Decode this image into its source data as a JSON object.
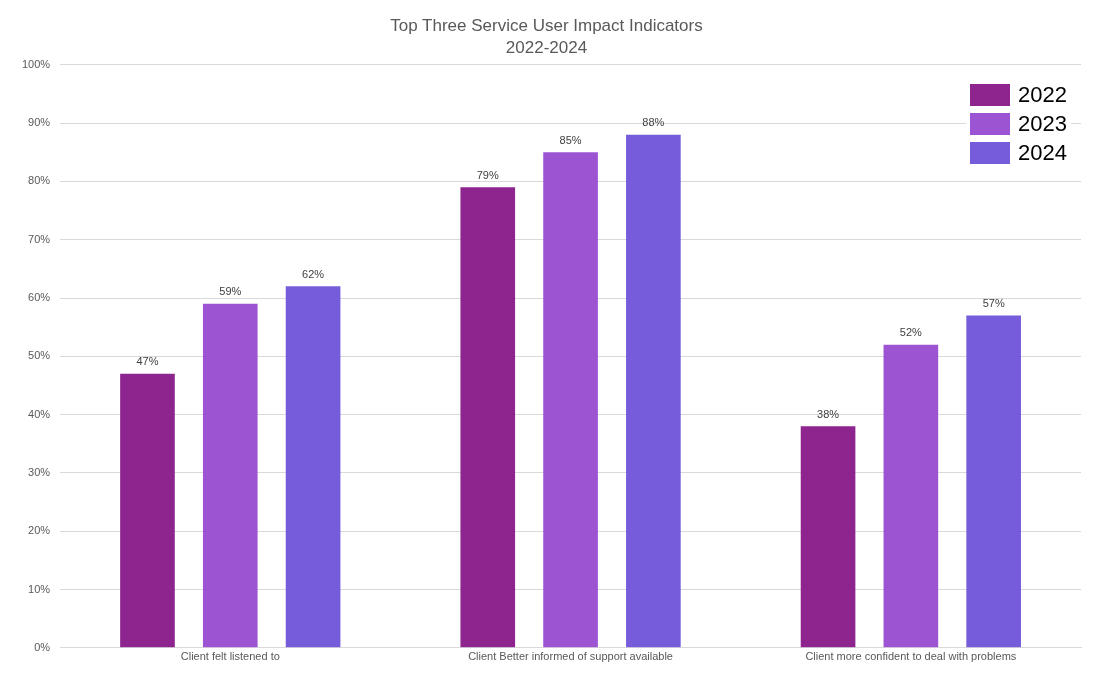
{
  "chart_data": {
    "type": "bar",
    "title": "Top Three Service User Impact Indicators",
    "subtitle": "2022-2024",
    "categories": [
      "Client felt listened to",
      "Client Better informed of support available",
      "Client more confident to deal with problems"
    ],
    "series": [
      {
        "name": "2022",
        "color": "#8e258f",
        "values": [
          47,
          79,
          38
        ],
        "value_labels": [
          "47%",
          "79%",
          "38%"
        ]
      },
      {
        "name": "2023",
        "color": "#9c54d2",
        "values": [
          59,
          85,
          52
        ],
        "value_labels": [
          "59%",
          "85%",
          "52%"
        ]
      },
      {
        "name": "2024",
        "color": "#765cdb",
        "values": [
          62,
          88,
          57
        ],
        "value_labels": [
          "62%",
          "88%",
          "57%"
        ]
      }
    ],
    "ylim": [
      0,
      100
    ],
    "yticks": [
      {
        "value": 0,
        "label": "0%"
      },
      {
        "value": 10,
        "label": "10%"
      },
      {
        "value": 20,
        "label": "20%"
      },
      {
        "value": 30,
        "label": "30%"
      },
      {
        "value": 40,
        "label": "40%"
      },
      {
        "value": 50,
        "label": "50%"
      },
      {
        "value": 60,
        "label": "60%"
      },
      {
        "value": 70,
        "label": "70%"
      },
      {
        "value": 80,
        "label": "80%"
      },
      {
        "value": 90,
        "label": "90%"
      },
      {
        "value": 100,
        "label": "100%"
      }
    ],
    "grid": "y",
    "legend": "top right"
  }
}
